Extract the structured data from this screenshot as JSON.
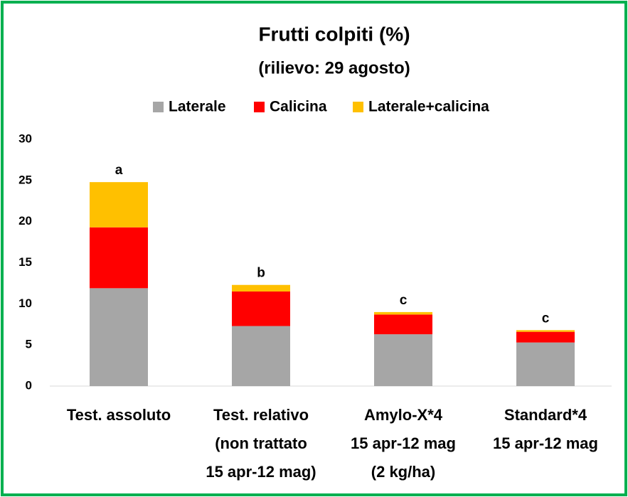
{
  "chart_data": {
    "type": "stacked_bar",
    "title": "Frutti colpiti (%)",
    "subtitle": "(rilievo: 29 agosto)",
    "categories": [
      [
        "Test. assoluto"
      ],
      [
        "Test. relativo",
        "(non trattato",
        "15 apr-12 mag)"
      ],
      [
        "Amylo-X*4",
        "15 apr-12 mag",
        "(2 kg/ha)"
      ],
      [
        "Standard*4",
        "15 apr-12 mag"
      ]
    ],
    "series": [
      {
        "name": "Laterale",
        "color": "#a6a6a6",
        "values": [
          11.9,
          7.3,
          6.3,
          5.3
        ]
      },
      {
        "name": "Calicina",
        "color": "#ff0000",
        "values": [
          7.4,
          4.2,
          2.4,
          1.3
        ]
      },
      {
        "name": "Laterale+calicina",
        "color": "#ffc000",
        "values": [
          5.5,
          0.8,
          0.3,
          0.2
        ]
      }
    ],
    "annotations": [
      "a",
      "b",
      "c",
      "c"
    ],
    "ylim": [
      0,
      30
    ],
    "yticks": [
      0,
      5,
      10,
      15,
      20,
      25,
      30
    ],
    "grid": false,
    "legend": "top"
  }
}
